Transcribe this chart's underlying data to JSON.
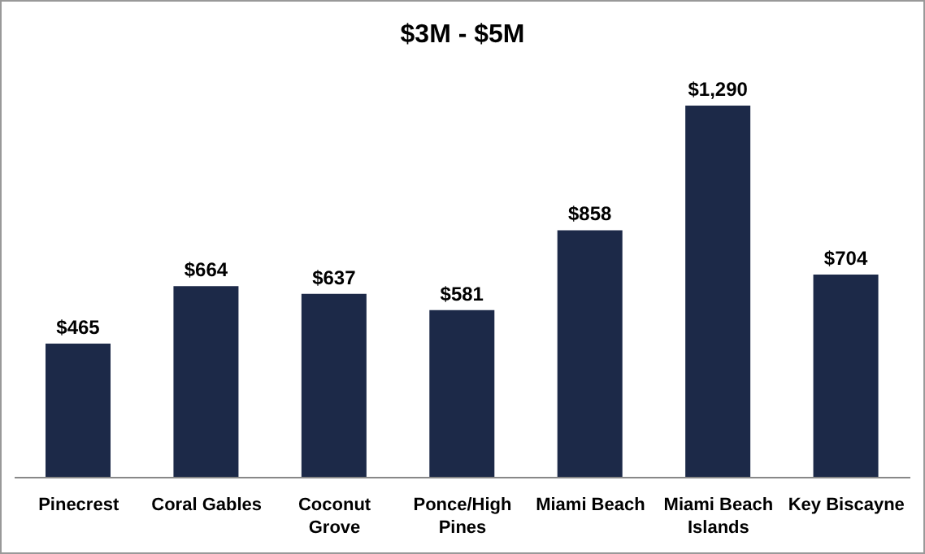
{
  "chart_data": {
    "type": "bar",
    "title": "$3M - $5M",
    "categories": [
      "Pinecrest",
      "Coral Gables",
      "Coconut Grove",
      "Ponce/High Pines",
      "Miami Beach",
      "Miami Beach Islands",
      "Key Biscayne"
    ],
    "values": [
      465,
      664,
      637,
      581,
      858,
      1290,
      704
    ],
    "value_labels": [
      "$465",
      "$664",
      "$637",
      "$581",
      "$858",
      "$1,290",
      "$704"
    ],
    "color": "#1c2948",
    "grid": false,
    "legend": false
  }
}
